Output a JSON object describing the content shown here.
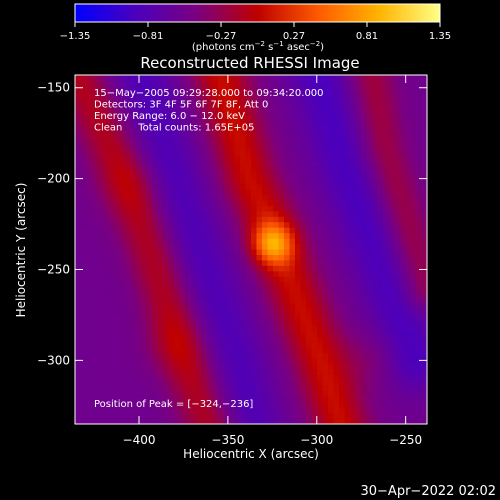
{
  "chart_data": {
    "type": "heatmap",
    "title": "Reconstructed RHESSI Image",
    "xlabel": "Heliocentric X (arcsec)",
    "ylabel": "Heliocentric Y (arcsec)",
    "xlim": [
      -436,
      -238
    ],
    "ylim": [
      -335,
      -143
    ],
    "xticks": [
      -400,
      -350,
      -300,
      -250
    ],
    "xtick_labels": [
      "−400",
      "−350",
      "−300",
      "−250"
    ],
    "yticks": [
      -150,
      -200,
      -250,
      -300
    ],
    "ytick_labels": [
      "−150",
      "−200",
      "−250",
      "−300"
    ],
    "colorbar": {
      "min": -1.35,
      "max": 1.35,
      "ticks": [
        -1.35,
        -0.81,
        -0.27,
        0.27,
        0.81,
        1.35
      ],
      "tick_labels": [
        "−1.35",
        "−0.81",
        "−0.27",
        "0.27",
        "0.81",
        "1.35"
      ],
      "units_main": "(photons cm",
      "units_exp1": "−2",
      "units_mid": " s",
      "units_exp2": "−1",
      "units_tail": " asec",
      "units_exp3": "−2",
      "units_close": ")",
      "colormap": [
        "#0000ff",
        "#4b00bd",
        "#7a0080",
        "#bf0000",
        "#ff5a00",
        "#ffb400",
        "#ffff87"
      ]
    },
    "info_lines": [
      "15−May−2005 09:29:28.000 to 09:34:20.000",
      "Detectors: 3F 4F 5F 6F 7F 8F, Att 0",
      "Energy Range: 6.0 − 12.0 keV",
      "Clean     Total counts: 1.65E+05"
    ],
    "peak_label": "Position of Peak = [−324,−236]",
    "peak": [
      -324,
      -236
    ],
    "peak_value": 1.35,
    "background_value": -0.55,
    "ridges": [
      {
        "points": [
          [
            -436,
            -140
          ],
          [
            -405,
            -205
          ],
          [
            -385,
            -265
          ],
          [
            -365,
            -325
          ],
          [
            -358,
            -340
          ]
        ],
        "amplitude": 0.45,
        "width": 10
      },
      {
        "points": [
          [
            -355,
            -140
          ],
          [
            -338,
            -200
          ],
          [
            -323,
            -232
          ],
          [
            -315,
            -255
          ],
          [
            -298,
            -300
          ],
          [
            -285,
            -340
          ]
        ],
        "amplitude": 0.6,
        "width": 11
      },
      {
        "points": [
          [
            -270,
            -140
          ],
          [
            -262,
            -185
          ],
          [
            -250,
            -225
          ],
          [
            -240,
            -260
          ]
        ],
        "amplitude": 0.35,
        "width": 9
      }
    ],
    "hotspots": [
      {
        "x": -325,
        "y": -236,
        "amplitude": 0.9,
        "width": 8
      },
      {
        "x": -382,
        "y": -292,
        "amplitude": 0.15,
        "width": 12
      },
      {
        "x": -410,
        "y": -205,
        "amplitude": 0.12,
        "width": 12
      },
      {
        "x": -270,
        "y": -300,
        "amplitude": 0.15,
        "width": 12
      }
    ],
    "troughs": [
      {
        "points": [
          [
            -400,
            -140
          ],
          [
            -375,
            -215
          ],
          [
            -345,
            -300
          ],
          [
            -335,
            -340
          ]
        ],
        "amplitude": -0.3,
        "width": 12
      },
      {
        "points": [
          [
            -300,
            -140
          ],
          [
            -285,
            -190
          ],
          [
            -262,
            -250
          ],
          [
            -245,
            -300
          ]
        ],
        "amplitude": -0.35,
        "width": 12
      }
    ]
  },
  "footer_timestamp": "30−Apr−2022 02:02"
}
